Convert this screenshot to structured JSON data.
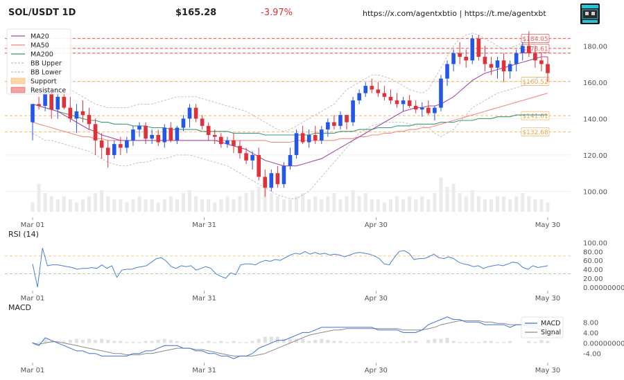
{
  "header": {
    "title": "SOL/USDT 1D",
    "price": "$165.28",
    "change": "-3.97%",
    "links": "https://x.com/agentxbtio | https://t.me/agentxbt",
    "change_color": "#e0313b"
  },
  "colors": {
    "up": "#2456e8",
    "down": "#e0313b",
    "ma20": "#a24ea6",
    "ma50": "#f08a80",
    "ma200": "#3a9a78",
    "bb": "#bdbdbd",
    "support": "#f5b865",
    "resistance": "#e85a5a",
    "rsi": "#4a7fd6",
    "macd": "#3f6fd2",
    "signal": "#8a8a8a",
    "hist": "#d9d9d9"
  },
  "chart_data": [
    {
      "type": "candlestick",
      "panel": "price",
      "x_ticks": [
        "Mar 01",
        "Mar 31",
        "Apr 30",
        "May 30"
      ],
      "y_ticks": [
        "100.00",
        "120.00",
        "140.00",
        "160.00",
        "180.00"
      ],
      "ylim": [
        88,
        190
      ],
      "legend": {
        "placement": "top-left",
        "entries": [
          "MA20",
          "MA50",
          "MA200",
          "BB Upper",
          "BB Lower",
          "Support",
          "Resistance"
        ]
      },
      "ohlc": [
        [
          138,
          148,
          128,
          148
        ],
        [
          148,
          152,
          145,
          147
        ],
        [
          147,
          158,
          144,
          154
        ],
        [
          154,
          162,
          140,
          145
        ],
        [
          145,
          155,
          140,
          152
        ],
        [
          152,
          156,
          145,
          146
        ],
        [
          146,
          152,
          138,
          140
        ],
        [
          140,
          148,
          132,
          144
        ],
        [
          144,
          150,
          138,
          142
        ],
        [
          142,
          146,
          134,
          137
        ],
        [
          137,
          140,
          120,
          128
        ],
        [
          128,
          132,
          118,
          124
        ],
        [
          124,
          128,
          113,
          120
        ],
        [
          120,
          128,
          118,
          126
        ],
        [
          126,
          130,
          120,
          124
        ],
        [
          124,
          130,
          121,
          128
        ],
        [
          128,
          136,
          125,
          134
        ],
        [
          134,
          138,
          130,
          136
        ],
        [
          136,
          138,
          126,
          129
        ],
        [
          129,
          134,
          126,
          131
        ],
        [
          131,
          134,
          125,
          127
        ],
        [
          127,
          137,
          124,
          135
        ],
        [
          135,
          138,
          127,
          128
        ],
        [
          128,
          136,
          126,
          135
        ],
        [
          135,
          142,
          133,
          140
        ],
        [
          140,
          148,
          135,
          146
        ],
        [
          146,
          148,
          138,
          140
        ],
        [
          140,
          142,
          134,
          136
        ],
        [
          136,
          138,
          128,
          131
        ],
        [
          131,
          134,
          126,
          130
        ],
        [
          130,
          132,
          124,
          126
        ],
        [
          126,
          130,
          124,
          128
        ],
        [
          128,
          132,
          121,
          125
        ],
        [
          125,
          128,
          118,
          121
        ],
        [
          121,
          124,
          115,
          117
        ],
        [
          117,
          122,
          112,
          120
        ],
        [
          120,
          124,
          106,
          108
        ],
        [
          108,
          112,
          97,
          102
        ],
        [
          102,
          112,
          100,
          110
        ],
        [
          110,
          114,
          102,
          104
        ],
        [
          104,
          116,
          102,
          114
        ],
        [
          114,
          124,
          112,
          120
        ],
        [
          120,
          134,
          118,
          132
        ],
        [
          132,
          136,
          126,
          127
        ],
        [
          127,
          134,
          124,
          131
        ],
        [
          131,
          136,
          126,
          128
        ],
        [
          128,
          136,
          126,
          134
        ],
        [
          134,
          140,
          130,
          138
        ],
        [
          138,
          142,
          134,
          136
        ],
        [
          136,
          144,
          134,
          142
        ],
        [
          142,
          142,
          134,
          138
        ],
        [
          138,
          152,
          136,
          150
        ],
        [
          150,
          156,
          148,
          154
        ],
        [
          154,
          160,
          152,
          158
        ],
        [
          158,
          162,
          154,
          156
        ],
        [
          156,
          160,
          152,
          154
        ],
        [
          154,
          158,
          150,
          152
        ],
        [
          152,
          156,
          148,
          150
        ],
        [
          150,
          154,
          146,
          148
        ],
        [
          148,
          152,
          144,
          150
        ],
        [
          150,
          153,
          146,
          147
        ],
        [
          147,
          150,
          143,
          145
        ],
        [
          145,
          149,
          141,
          146
        ],
        [
          146,
          150,
          142,
          143
        ],
        [
          143,
          147,
          139,
          146
        ],
        [
          146,
          164,
          144,
          162
        ],
        [
          162,
          172,
          158,
          170
        ],
        [
          170,
          178,
          166,
          176
        ],
        [
          176,
          182,
          170,
          174
        ],
        [
          174,
          178,
          168,
          172
        ],
        [
          172,
          186,
          170,
          184
        ],
        [
          184,
          186,
          172,
          174
        ],
        [
          174,
          180,
          166,
          170
        ],
        [
          170,
          174,
          164,
          168
        ],
        [
          168,
          174,
          162,
          172
        ],
        [
          172,
          176,
          160,
          166
        ],
        [
          166,
          172,
          162,
          170
        ],
        [
          170,
          178,
          166,
          176
        ],
        [
          176,
          182,
          172,
          180
        ],
        [
          180,
          188,
          174,
          176
        ],
        [
          176,
          180,
          168,
          172
        ],
        [
          172,
          176,
          166,
          170
        ],
        [
          170,
          174,
          160,
          165
        ]
      ],
      "ma20": [
        148,
        147,
        146,
        145,
        144,
        142,
        140,
        138,
        136,
        134,
        133,
        131,
        130,
        129,
        128,
        128,
        128,
        128,
        128,
        128,
        128,
        128,
        128,
        128,
        128,
        128,
        128,
        128,
        128,
        128,
        127,
        126,
        125,
        124,
        123,
        121,
        119,
        117,
        116,
        115,
        114,
        114,
        114,
        115,
        116,
        117,
        118,
        120,
        122,
        124,
        126,
        128,
        130,
        132,
        134,
        136,
        138,
        140,
        142,
        144,
        145,
        146,
        146,
        147,
        147,
        148,
        150,
        152,
        155,
        158,
        161,
        163,
        165,
        166,
        167,
        168,
        169,
        170,
        171,
        172,
        173,
        174,
        174
      ],
      "ma50": [
        138,
        137,
        136,
        135,
        134,
        133,
        132,
        131,
        130,
        130,
        129,
        129,
        128,
        128,
        128,
        128,
        128,
        128,
        128,
        128,
        128,
        128,
        128,
        128,
        128,
        128,
        128,
        128,
        128,
        128,
        128,
        128,
        128,
        128,
        128,
        128,
        128,
        128,
        127,
        127,
        127,
        127,
        128,
        128,
        128,
        128,
        128,
        128,
        128,
        129,
        129,
        129,
        130,
        130,
        131,
        131,
        132,
        132,
        133,
        133,
        134,
        134,
        135,
        135,
        136,
        137,
        138,
        139,
        140,
        141,
        142,
        143,
        144,
        145,
        146,
        147,
        148,
        149,
        150,
        151,
        152,
        153,
        154
      ],
      "ma200": [
        148,
        147,
        146,
        145,
        144,
        143,
        142,
        141,
        140,
        139,
        139,
        138,
        138,
        137,
        137,
        137,
        136,
        136,
        136,
        135,
        135,
        135,
        134,
        134,
        134,
        134,
        134,
        133,
        133,
        133,
        133,
        133,
        132,
        132,
        132,
        132,
        132,
        131,
        131,
        131,
        131,
        131,
        131,
        131,
        131,
        132,
        132,
        132,
        132,
        133,
        133,
        133,
        134,
        134,
        134,
        135,
        135,
        135,
        136,
        136,
        136,
        137,
        137,
        137,
        137,
        138,
        138,
        138,
        139,
        139,
        139,
        140,
        140,
        140,
        141,
        141,
        141,
        142,
        142,
        142,
        142,
        142,
        142
      ],
      "bb_upper": [
        158,
        160,
        162,
        162,
        160,
        158,
        156,
        154,
        152,
        150,
        148,
        147,
        146,
        146,
        146,
        146,
        147,
        148,
        148,
        148,
        149,
        150,
        151,
        152,
        152,
        152,
        152,
        151,
        150,
        149,
        148,
        147,
        146,
        145,
        144,
        142,
        140,
        138,
        136,
        134,
        133,
        134,
        136,
        138,
        140,
        142,
        144,
        146,
        148,
        152,
        156,
        158,
        160,
        162,
        164,
        164,
        163,
        162,
        160,
        158,
        156,
        155,
        154,
        156,
        162,
        168,
        174,
        180,
        184,
        186,
        187,
        186,
        184,
        182,
        180,
        178,
        179,
        180,
        182,
        184,
        185,
        184,
        182
      ],
      "bb_lower": [
        132,
        130,
        128,
        128,
        127,
        126,
        125,
        124,
        123,
        122,
        120,
        118,
        116,
        115,
        114,
        114,
        115,
        116,
        116,
        117,
        118,
        118,
        119,
        120,
        120,
        120,
        119,
        118,
        117,
        116,
        115,
        114,
        112,
        110,
        108,
        106,
        104,
        102,
        100,
        98,
        97,
        96,
        96,
        98,
        100,
        104,
        108,
        112,
        116,
        120,
        124,
        128,
        132,
        134,
        136,
        137,
        138,
        138,
        138,
        138,
        137,
        136,
        136,
        135,
        132,
        130,
        132,
        134,
        138,
        142,
        146,
        148,
        150,
        152,
        154,
        155,
        156,
        157,
        158,
        160,
        162,
        163,
        162
      ],
      "volume": [
        3,
        9,
        6,
        5,
        4,
        5,
        4,
        3,
        4,
        5,
        6,
        7,
        5,
        4,
        4,
        3,
        4,
        5,
        4,
        4,
        3,
        4,
        5,
        4,
        6,
        7,
        5,
        4,
        4,
        3,
        4,
        5,
        4,
        5,
        6,
        7,
        8,
        9,
        6,
        5,
        4,
        4,
        5,
        6,
        4,
        5,
        4,
        5,
        6,
        4,
        5,
        7,
        5,
        6,
        4,
        4,
        3,
        4,
        5,
        4,
        5,
        4,
        5,
        4,
        6,
        11,
        8,
        9,
        6,
        5,
        7,
        5,
        4,
        4,
        5,
        5,
        4,
        5,
        6,
        5,
        4,
        4,
        3
      ],
      "support": [
        141.61,
        132.68,
        160.52
      ],
      "resistance": [
        184.05,
        178.61,
        176.0
      ],
      "level_labels": [
        "$184.05",
        "$178.61",
        "$160.52",
        "$141.61",
        "$132.68"
      ]
    },
    {
      "type": "line",
      "panel": "rsi",
      "title": "RSI (14)",
      "x_ticks": [
        "Mar 01",
        "Mar 31",
        "Apr 30",
        "May 30"
      ],
      "y_ticks": [
        "0.00000000",
        "20.00",
        "40.00",
        "60.00",
        "80.00",
        "100.00"
      ],
      "ylim": [
        -5,
        110
      ],
      "ref_lines": [
        70,
        30
      ],
      "values": [
        52,
        0,
        88,
        48,
        50,
        50,
        48,
        46,
        44,
        40,
        42,
        42,
        44,
        42,
        50,
        42,
        48,
        22,
        38,
        40,
        40,
        44,
        46,
        48,
        56,
        64,
        66,
        58,
        46,
        42,
        48,
        46,
        48,
        38,
        42,
        46,
        42,
        30,
        24,
        20,
        32,
        28,
        50,
        52,
        52,
        50,
        56,
        60,
        58,
        62,
        60,
        66,
        72,
        76,
        74,
        80,
        74,
        78,
        74,
        76,
        72,
        74,
        72,
        68,
        72,
        76,
        78,
        76,
        74,
        70,
        64,
        52,
        50,
        66,
        80,
        82,
        76,
        62,
        64,
        64,
        68,
        74,
        66,
        64,
        68,
        64,
        56,
        52,
        50,
        46,
        48,
        42,
        46,
        48,
        50,
        48,
        52,
        56,
        54,
        44,
        40,
        48,
        44,
        46,
        48
      ]
    },
    {
      "type": "line",
      "panel": "macd",
      "title": "MACD",
      "legend": {
        "placement": "right",
        "entries": [
          "MACD",
          "Signal"
        ]
      },
      "x_ticks": [
        "Mar 01",
        "Mar 31",
        "Apr 30",
        "May 30"
      ],
      "y_ticks": [
        "-4.00",
        "0.00000000",
        "4.00",
        "8.00"
      ],
      "ylim": [
        -7,
        11
      ],
      "macd": [
        0,
        -1,
        2,
        1,
        0,
        -1,
        -2,
        -3,
        -3,
        -4,
        -4,
        -5,
        -5,
        -5,
        -5,
        -5,
        -4,
        -4,
        -3,
        -3,
        -2,
        -1,
        -1,
        -1,
        -2,
        -2,
        -3,
        -3,
        -4,
        -4,
        -5,
        -5,
        -6,
        -5,
        -5,
        -4,
        -2,
        -1,
        0,
        1,
        1,
        2,
        3,
        4,
        4,
        5,
        6,
        6,
        6,
        6,
        6,
        6,
        6,
        6,
        6,
        5,
        5,
        5,
        5,
        4,
        4,
        4,
        5,
        7,
        8,
        9,
        10,
        9,
        9,
        8,
        8,
        8,
        7,
        7,
        7,
        7,
        6,
        7,
        7,
        6,
        6,
        5,
        5
      ],
      "signal": [
        0,
        -0.5,
        0,
        0.5,
        0.5,
        0,
        -0.5,
        -1,
        -1.5,
        -2,
        -2.5,
        -3,
        -3.5,
        -4,
        -4,
        -4.5,
        -4.5,
        -4.5,
        -4,
        -4,
        -3.5,
        -3,
        -2.5,
        -2,
        -2,
        -2,
        -2.5,
        -2.5,
        -3,
        -3.5,
        -4,
        -4.5,
        -5,
        -5,
        -5,
        -5,
        -4.5,
        -4,
        -3,
        -2,
        -1,
        0,
        1,
        2,
        3,
        3.5,
        4,
        4.5,
        5,
        5,
        5.5,
        5.5,
        5.5,
        5.5,
        5.5,
        5.5,
        5.5,
        5.5,
        5.5,
        5,
        5,
        5,
        5,
        5.5,
        6,
        7,
        7.5,
        8,
        8.5,
        8.5,
        8.5,
        8.5,
        8,
        8,
        7.5,
        7.5,
        7,
        7,
        7,
        7,
        6.5,
        6.5,
        6
      ],
      "hist": [
        0.5,
        0.5,
        2,
        1,
        0.5,
        1,
        1.5,
        2,
        1.5,
        2,
        1.5,
        2,
        1.5,
        1,
        1,
        0.5,
        0.5,
        0.5,
        1,
        1,
        1.5,
        2,
        1.5,
        1,
        0.5,
        0.5,
        0.5,
        0.5,
        1,
        0.5,
        1,
        0.5,
        1,
        0.5,
        0.5,
        1,
        2,
        3,
        3,
        3,
        2,
        2,
        2,
        2,
        1,
        1.5,
        2,
        1.5,
        1,
        1,
        0.5,
        0.5,
        0.5,
        0.5,
        0.5,
        0.5,
        0.5,
        0.5,
        0.5,
        1,
        1,
        1,
        0,
        1.5,
        2,
        2,
        2.5,
        1,
        0.5,
        0.5,
        0.5,
        0.5,
        1,
        1,
        0.5,
        0.5,
        1,
        0,
        0,
        1,
        0.5,
        1.5,
        1
      ]
    }
  ]
}
